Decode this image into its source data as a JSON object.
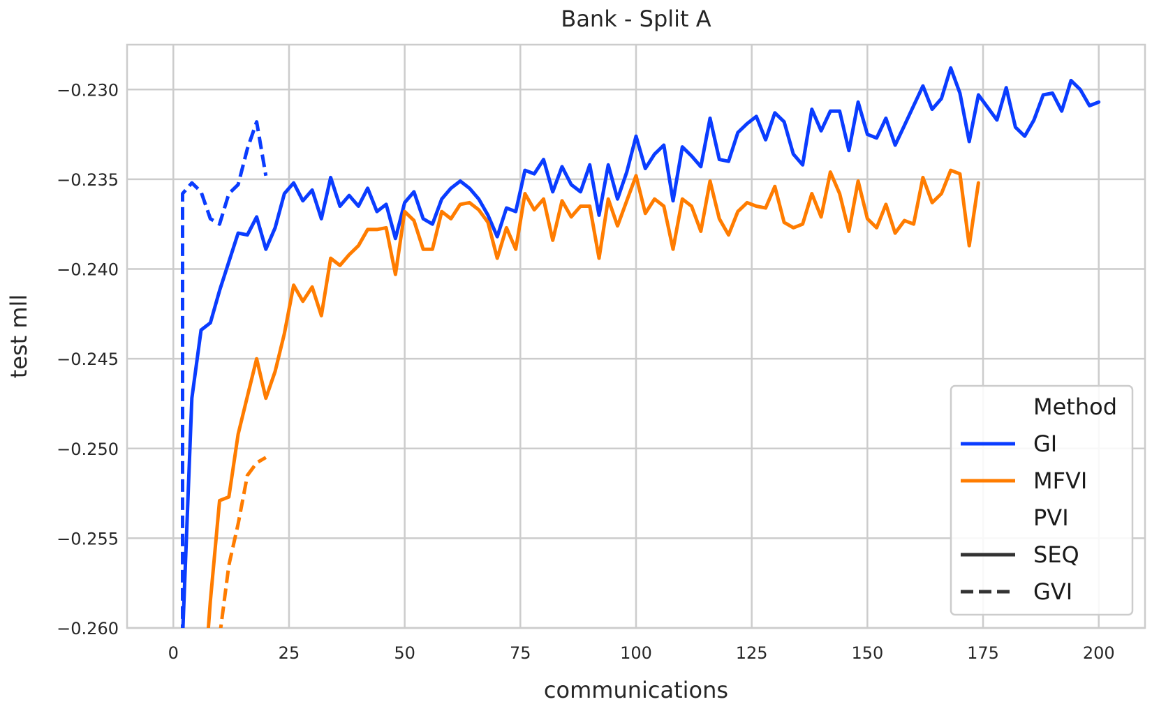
{
  "chart_data": {
    "type": "line",
    "title": "Bank - Split A",
    "xlabel": "communications",
    "ylabel": "test mll",
    "xlim": [
      -10,
      210
    ],
    "ylim": [
      -0.26,
      -0.2275
    ],
    "xticks": [
      0,
      25,
      50,
      75,
      100,
      125,
      150,
      175,
      200
    ],
    "xtick_labels": [
      "0",
      "25",
      "50",
      "75",
      "100",
      "125",
      "150",
      "175",
      "200"
    ],
    "yticks": [
      -0.26,
      -0.255,
      -0.25,
      -0.245,
      -0.24,
      -0.235,
      -0.23
    ],
    "ytick_labels": [
      "−0.260",
      "−0.255",
      "−0.250",
      "−0.245",
      "−0.240",
      "−0.235",
      "−0.230"
    ],
    "grid": true,
    "legend": {
      "placement": "lower-right",
      "entries": [
        {
          "label": "Method",
          "kind": "header"
        },
        {
          "label": "GI",
          "kind": "line",
          "color": "#0a3cff",
          "dash": "solid"
        },
        {
          "label": "MFVI",
          "kind": "line",
          "color": "#ff7c00",
          "dash": "solid"
        },
        {
          "label": "PVI",
          "kind": "header"
        },
        {
          "label": "SEQ",
          "kind": "line",
          "color": "#333333",
          "dash": "solid"
        },
        {
          "label": "GVI",
          "kind": "line",
          "color": "#333333",
          "dash": "dashed"
        }
      ]
    },
    "series": [
      {
        "method": "GI",
        "pvi": "SEQ",
        "color": "#0a3cff",
        "dash": "solid",
        "x": [
          2,
          4,
          6,
          8,
          10,
          12,
          14,
          16,
          18,
          20,
          22,
          24,
          26,
          28,
          30,
          32,
          34,
          36,
          38,
          40,
          42,
          44,
          46,
          48,
          50,
          52,
          54,
          56,
          58,
          60,
          62,
          64,
          66,
          68,
          70,
          72,
          74,
          76,
          78,
          80,
          82,
          84,
          86,
          88,
          90,
          92,
          94,
          96,
          98,
          100,
          102,
          104,
          106,
          108,
          110,
          112,
          114,
          116,
          118,
          120,
          122,
          124,
          126,
          128,
          130,
          132,
          134,
          136,
          138,
          140,
          142,
          144,
          146,
          148,
          150,
          152,
          154,
          156,
          158,
          160,
          162,
          164,
          166,
          168,
          170,
          172,
          174,
          176,
          178,
          180,
          182,
          184,
          186,
          188,
          190,
          192,
          194,
          196,
          198,
          200
        ],
        "y": [
          -0.2605,
          -0.2472,
          -0.2434,
          -0.243,
          -0.2412,
          -0.2396,
          -0.238,
          -0.2381,
          -0.2371,
          -0.2389,
          -0.2377,
          -0.2358,
          -0.2352,
          -0.2362,
          -0.2356,
          -0.2372,
          -0.2349,
          -0.2365,
          -0.2359,
          -0.2365,
          -0.2355,
          -0.2368,
          -0.2364,
          -0.2383,
          -0.2363,
          -0.2357,
          -0.2372,
          -0.2375,
          -0.2361,
          -0.2355,
          -0.2351,
          -0.2355,
          -0.2361,
          -0.237,
          -0.2382,
          -0.2366,
          -0.2368,
          -0.2345,
          -0.2347,
          -0.2339,
          -0.2357,
          -0.2343,
          -0.2353,
          -0.2357,
          -0.2342,
          -0.237,
          -0.2342,
          -0.2361,
          -0.2346,
          -0.2326,
          -0.2344,
          -0.2336,
          -0.2331,
          -0.2362,
          -0.2332,
          -0.2337,
          -0.2343,
          -0.2316,
          -0.2339,
          -0.234,
          -0.2324,
          -0.2319,
          -0.2315,
          -0.2328,
          -0.2313,
          -0.2318,
          -0.2336,
          -0.2342,
          -0.2311,
          -0.2323,
          -0.2312,
          -0.2312,
          -0.2334,
          -0.2307,
          -0.2325,
          -0.2327,
          -0.2316,
          -0.2331,
          -0.232,
          -0.2309,
          -0.2298,
          -0.2311,
          -0.2305,
          -0.2288,
          -0.2302,
          -0.2329,
          -0.2303,
          -0.231,
          -0.2317,
          -0.2299,
          -0.2321,
          -0.2326,
          -0.2317,
          -0.2303,
          -0.2302,
          -0.2312,
          -0.2295,
          -0.23,
          -0.2309,
          -0.2307
        ]
      },
      {
        "method": "MFVI",
        "pvi": "SEQ",
        "color": "#ff7c00",
        "dash": "solid",
        "x": [
          6,
          8,
          10,
          12,
          14,
          16,
          18,
          20,
          22,
          24,
          26,
          28,
          30,
          32,
          34,
          36,
          38,
          40,
          42,
          44,
          46,
          48,
          50,
          52,
          54,
          56,
          58,
          60,
          62,
          64,
          66,
          68,
          70,
          72,
          74,
          76,
          78,
          80,
          82,
          84,
          86,
          88,
          90,
          92,
          94,
          96,
          98,
          100,
          102,
          104,
          106,
          108,
          110,
          112,
          114,
          116,
          118,
          120,
          122,
          124,
          126,
          128,
          130,
          132,
          134,
          136,
          138,
          140,
          142,
          144,
          146,
          148,
          150,
          152,
          154,
          156,
          158,
          160,
          162,
          164,
          166,
          168,
          170,
          172,
          174
        ],
        "y": [
          -0.2655,
          -0.2585,
          -0.2529,
          -0.2527,
          -0.2492,
          -0.2471,
          -0.245,
          -0.2472,
          -0.2457,
          -0.2436,
          -0.2409,
          -0.2418,
          -0.241,
          -0.2426,
          -0.2394,
          -0.2398,
          -0.2392,
          -0.2387,
          -0.2378,
          -0.2378,
          -0.2377,
          -0.2403,
          -0.2368,
          -0.2373,
          -0.2389,
          -0.2389,
          -0.2368,
          -0.2372,
          -0.2364,
          -0.2363,
          -0.2367,
          -0.2374,
          -0.2394,
          -0.2377,
          -0.2389,
          -0.2358,
          -0.2367,
          -0.2361,
          -0.2384,
          -0.2362,
          -0.2371,
          -0.2365,
          -0.2365,
          -0.2394,
          -0.2361,
          -0.2376,
          -0.2362,
          -0.2348,
          -0.2369,
          -0.2361,
          -0.2365,
          -0.2389,
          -0.2361,
          -0.2365,
          -0.2379,
          -0.2351,
          -0.2372,
          -0.2381,
          -0.2368,
          -0.2363,
          -0.2365,
          -0.2366,
          -0.2354,
          -0.2374,
          -0.2377,
          -0.2375,
          -0.2358,
          -0.2371,
          -0.2346,
          -0.2358,
          -0.2379,
          -0.2351,
          -0.2372,
          -0.2377,
          -0.2364,
          -0.238,
          -0.2373,
          -0.2375,
          -0.2349,
          -0.2363,
          -0.2358,
          -0.2345,
          -0.2347,
          -0.2387,
          -0.2352
        ]
      },
      {
        "method": "GI",
        "pvi": "GVI",
        "color": "#0a3cff",
        "dash": "dashed",
        "x": [
          2,
          2,
          4,
          6,
          8,
          10,
          12,
          14,
          16,
          18,
          20
        ],
        "y": [
          -0.2605,
          -0.2358,
          -0.2352,
          -0.2357,
          -0.2372,
          -0.2375,
          -0.2358,
          -0.2353,
          -0.2333,
          -0.2318,
          -0.2348
        ]
      },
      {
        "method": "MFVI",
        "pvi": "GVI",
        "color": "#ff7c00",
        "dash": "dashed",
        "x": [
          10,
          12,
          14,
          16,
          18,
          20
        ],
        "y": [
          -0.2605,
          -0.2565,
          -0.2542,
          -0.2515,
          -0.2508,
          -0.2505
        ]
      }
    ]
  }
}
